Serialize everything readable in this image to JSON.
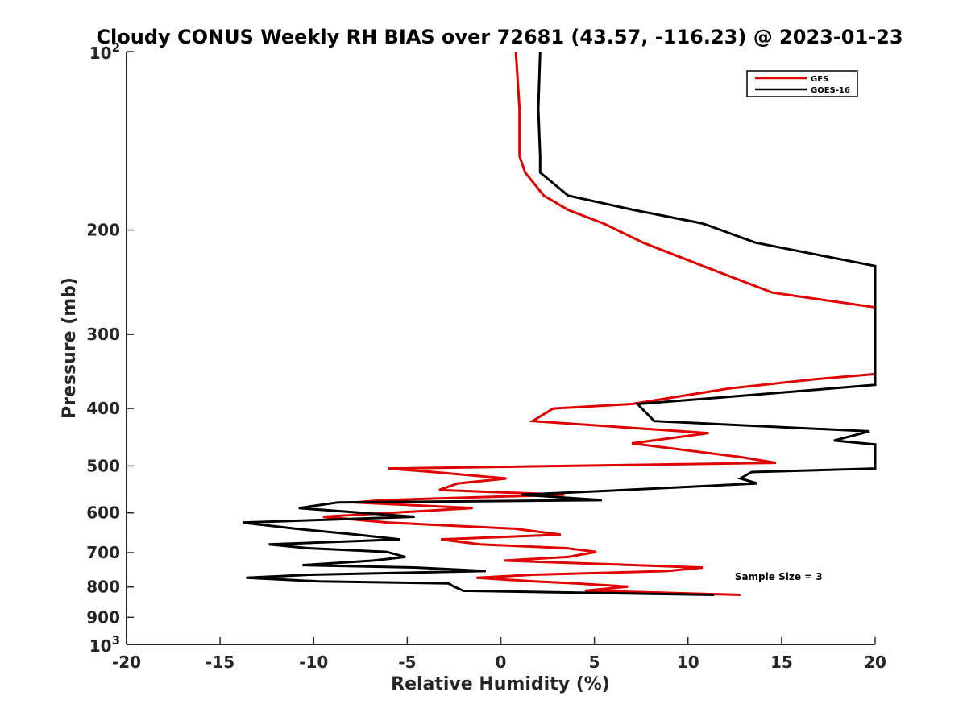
{
  "chart_data": {
    "type": "line",
    "title": "Cloudy CONUS Weekly RH BIAS over 72681 (43.57, -116.23) @ 2023-01-23",
    "xlabel": "Relative Humidity (%)",
    "ylabel": "Pressure (mb)",
    "xlim": [
      -20,
      20
    ],
    "ylim": [
      100,
      1000
    ],
    "y_scale": "log",
    "y_reversed": true,
    "grid": false,
    "legend_position": "top-right",
    "x_ticks": [
      "-20",
      "-15",
      "-10",
      "-5",
      "0",
      "5",
      "10",
      "15",
      "20"
    ],
    "y_ticks": [
      {
        "value": 100,
        "base": "10",
        "exp": "2"
      },
      {
        "value": 200,
        "label": "200"
      },
      {
        "value": 300,
        "label": "300"
      },
      {
        "value": 400,
        "label": "400"
      },
      {
        "value": 500,
        "label": "500"
      },
      {
        "value": 600,
        "label": "600"
      },
      {
        "value": 700,
        "label": "700"
      },
      {
        "value": 800,
        "label": "800"
      },
      {
        "value": 900,
        "label": "900"
      },
      {
        "value": 1000,
        "base": "10",
        "exp": "3"
      }
    ],
    "series": [
      {
        "name": "GFS",
        "color": "#e00000",
        "points": [
          [
            0.8,
            100
          ],
          [
            1.0,
            125
          ],
          [
            1.0,
            150
          ],
          [
            1.3,
            160
          ],
          [
            2.3,
            175
          ],
          [
            3.6,
            185
          ],
          [
            5.5,
            195
          ],
          [
            7.6,
            210
          ],
          [
            10.8,
            230
          ],
          [
            14.5,
            255
          ],
          [
            20,
            270
          ],
          [
            20,
            350
          ],
          [
            16.8,
            357
          ],
          [
            12.2,
            370
          ],
          [
            7.0,
            393
          ],
          [
            2.8,
            400
          ],
          [
            1.7,
            420
          ],
          [
            11.1,
            440
          ],
          [
            7.0,
            458
          ],
          [
            12.8,
            483
          ],
          [
            14.7,
            494
          ],
          [
            -6.0,
            505
          ],
          [
            -3.6,
            512
          ],
          [
            0.3,
            525
          ],
          [
            -2.3,
            535
          ],
          [
            -3.3,
            549
          ],
          [
            3.4,
            559
          ],
          [
            -6.3,
            571
          ],
          [
            -7.8,
            576
          ],
          [
            -1.5,
            589
          ],
          [
            -9.5,
            609
          ],
          [
            -6.0,
            623
          ],
          [
            0.7,
            638
          ],
          [
            3.2,
            653
          ],
          [
            -3.2,
            665
          ],
          [
            -1.1,
            678
          ],
          [
            3.5,
            688
          ],
          [
            5.1,
            698
          ],
          [
            3.6,
            712
          ],
          [
            0.2,
            722
          ],
          [
            7.2,
            735
          ],
          [
            10.8,
            742
          ],
          [
            8.9,
            752
          ],
          [
            1.7,
            763
          ],
          [
            -1.3,
            772
          ],
          [
            1.8,
            783
          ],
          [
            4.0,
            789
          ],
          [
            6.8,
            799
          ],
          [
            4.5,
            812
          ],
          [
            8.0,
            817
          ],
          [
            12.8,
            825
          ]
        ]
      },
      {
        "name": "GOES-16",
        "color": "#000000",
        "points": [
          [
            2.1,
            100
          ],
          [
            2.0,
            125
          ],
          [
            2.1,
            150
          ],
          [
            2.1,
            160
          ],
          [
            3.6,
            175
          ],
          [
            7.1,
            185
          ],
          [
            10.8,
            195
          ],
          [
            13.6,
            210
          ],
          [
            20,
            230
          ],
          [
            20,
            365
          ],
          [
            16.8,
            372
          ],
          [
            12.3,
            382
          ],
          [
            7.3,
            393
          ],
          [
            8.2,
            420
          ],
          [
            19.7,
            437
          ],
          [
            17.8,
            453
          ],
          [
            20,
            460
          ],
          [
            20,
            505
          ],
          [
            13.4,
            512
          ],
          [
            12.8,
            525
          ],
          [
            13.7,
            535
          ],
          [
            6.6,
            549
          ],
          [
            1.1,
            559
          ],
          [
            5.4,
            571
          ],
          [
            -8.7,
            576
          ],
          [
            -10.8,
            589
          ],
          [
            -4.6,
            609
          ],
          [
            -13.8,
            623
          ],
          [
            -11.0,
            638
          ],
          [
            -7.7,
            653
          ],
          [
            -5.4,
            665
          ],
          [
            -12.4,
            678
          ],
          [
            -10.3,
            688
          ],
          [
            -6.1,
            698
          ],
          [
            -5.1,
            712
          ],
          [
            -6.8,
            722
          ],
          [
            -10.6,
            735
          ],
          [
            -4.5,
            742
          ],
          [
            -0.8,
            752
          ],
          [
            -10.2,
            763
          ],
          [
            -13.6,
            772
          ],
          [
            -9.7,
            783
          ],
          [
            -2.8,
            789
          ],
          [
            -2.5,
            799
          ],
          [
            -2.0,
            812
          ],
          [
            11.4,
            825
          ]
        ]
      }
    ],
    "annotations": [
      {
        "text": "Sample Size = 3",
        "x": 12.5,
        "y": 766
      }
    ]
  }
}
